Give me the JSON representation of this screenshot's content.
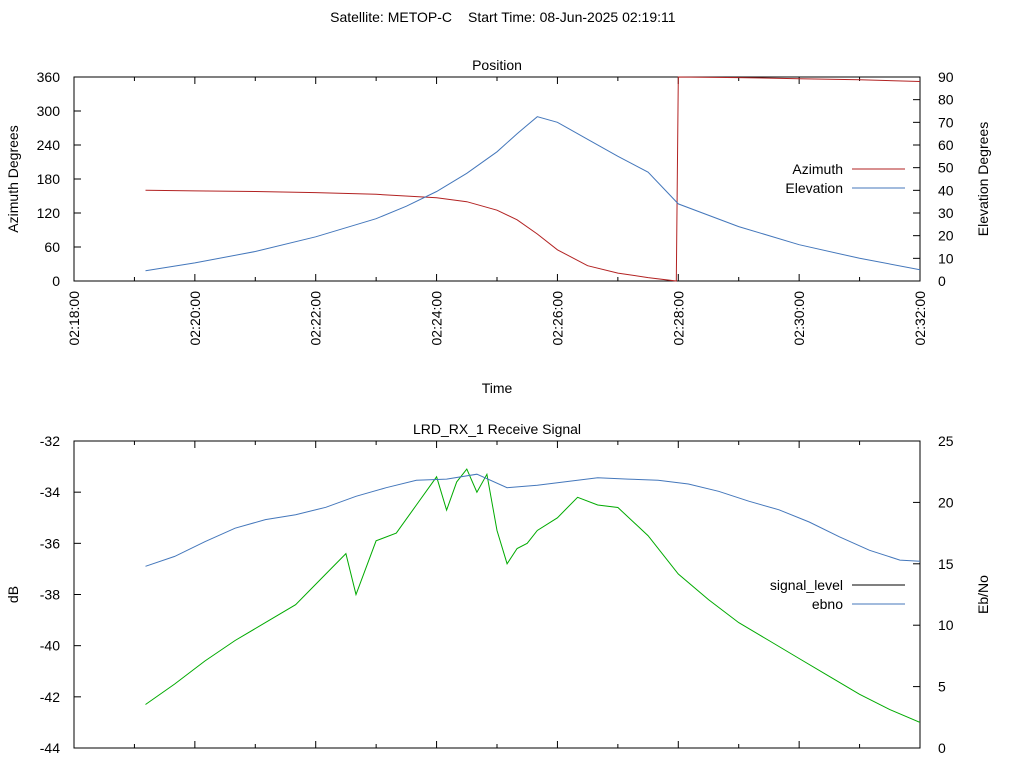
{
  "header": {
    "satellite": "Satellite: METOP-C",
    "start_time": "Start Time: 08-Jun-2025 02:19:11"
  },
  "chart_data": [
    {
      "type": "line",
      "title": "Position",
      "xlabel": "Time",
      "ylabel": "Azimuth Degrees",
      "y2label": "Elevation Degrees",
      "xlim": [
        "02:18:00",
        "02:32:00"
      ],
      "xticks": [
        "02:18:00",
        "02:20:00",
        "02:22:00",
        "02:24:00",
        "02:26:00",
        "02:28:00",
        "02:30:00",
        "02:32:00"
      ],
      "ylim": [
        0,
        360
      ],
      "yticks": [
        0,
        60,
        120,
        180,
        240,
        300,
        360
      ],
      "y2lim": [
        0,
        90
      ],
      "y2ticks": [
        0,
        10,
        20,
        30,
        40,
        50,
        60,
        70,
        80,
        90
      ],
      "legend": "right",
      "series": [
        {
          "name": "Azimuth",
          "axis": "y",
          "color": "#b22222",
          "x": [
            "02:19:11",
            "02:20:00",
            "02:21:00",
            "02:22:00",
            "02:23:00",
            "02:24:00",
            "02:24:30",
            "02:25:00",
            "02:25:20",
            "02:25:40",
            "02:26:00",
            "02:26:30",
            "02:27:00",
            "02:27:30",
            "02:27:58",
            "02:28:00",
            "02:29:00",
            "02:30:00",
            "02:31:00",
            "02:32:00"
          ],
          "values": [
            160,
            159,
            158,
            156,
            153,
            147,
            140,
            125,
            108,
            83,
            55,
            27,
            14,
            6,
            0,
            360,
            359,
            357,
            355,
            352
          ]
        },
        {
          "name": "Elevation",
          "axis": "y2",
          "color": "#4477bb",
          "x": [
            "02:19:11",
            "02:20:00",
            "02:21:00",
            "02:22:00",
            "02:23:00",
            "02:23:30",
            "02:24:00",
            "02:24:30",
            "02:25:00",
            "02:25:20",
            "02:25:40",
            "02:26:00",
            "02:26:30",
            "02:27:00",
            "02:27:30",
            "02:28:00",
            "02:29:00",
            "02:30:00",
            "02:31:00",
            "02:32:00"
          ],
          "values": [
            4.5,
            8,
            13,
            19.5,
            27.5,
            33,
            39.5,
            47.5,
            57,
            65,
            72.5,
            70,
            62.5,
            55,
            48,
            34,
            24,
            16,
            10,
            5
          ]
        }
      ]
    },
    {
      "type": "line",
      "title": "LRD_RX_1 Receive Signal",
      "ylabel": "dB",
      "y2label": "Eb/No",
      "xlim": [
        "02:18:00",
        "02:32:00"
      ],
      "ylim": [
        -44,
        -32
      ],
      "yticks": [
        -44,
        -42,
        -40,
        -38,
        -36,
        -34,
        -32
      ],
      "y2lim": [
        0,
        25
      ],
      "y2ticks": [
        0,
        5,
        10,
        15,
        20,
        25
      ],
      "legend": "right",
      "series": [
        {
          "name": "signal_level",
          "axis": "y",
          "color": "#00aa00",
          "x": [
            "02:19:11",
            "02:19:40",
            "02:20:10",
            "02:20:40",
            "02:21:10",
            "02:21:40",
            "02:22:10",
            "02:22:30",
            "02:22:40",
            "02:23:00",
            "02:23:20",
            "02:23:40",
            "02:24:00",
            "02:24:10",
            "02:24:20",
            "02:24:30",
            "02:24:40",
            "02:24:50",
            "02:25:00",
            "02:25:10",
            "02:25:20",
            "02:25:30",
            "02:25:40",
            "02:26:00",
            "02:26:20",
            "02:26:40",
            "02:27:00",
            "02:27:30",
            "02:28:00",
            "02:28:30",
            "02:29:00",
            "02:29:30",
            "02:30:00",
            "02:30:30",
            "02:31:00",
            "02:31:30",
            "02:32:00"
          ],
          "values": [
            -42.3,
            -41.5,
            -40.6,
            -39.8,
            -39.1,
            -38.4,
            -37.2,
            -36.4,
            -38.0,
            -35.9,
            -35.6,
            -34.5,
            -33.4,
            -34.7,
            -33.6,
            -33.1,
            -34.0,
            -33.3,
            -35.5,
            -36.8,
            -36.2,
            -36.0,
            -35.5,
            -35.0,
            -34.2,
            -34.5,
            -34.6,
            -35.7,
            -37.2,
            -38.2,
            -39.1,
            -39.8,
            -40.5,
            -41.2,
            -41.9,
            -42.5,
            -43.0
          ]
        },
        {
          "name": "ebno",
          "axis": "y2",
          "color": "#4477bb",
          "x": [
            "02:19:11",
            "02:19:40",
            "02:20:10",
            "02:20:40",
            "02:21:10",
            "02:21:40",
            "02:22:10",
            "02:22:40",
            "02:23:10",
            "02:23:40",
            "02:24:10",
            "02:24:40",
            "02:25:10",
            "02:25:40",
            "02:26:10",
            "02:26:40",
            "02:27:10",
            "02:27:40",
            "02:28:10",
            "02:28:40",
            "02:29:10",
            "02:29:40",
            "02:30:10",
            "02:30:40",
            "02:31:10",
            "02:31:40",
            "02:32:00"
          ],
          "values": [
            14.8,
            15.6,
            16.8,
            17.9,
            18.6,
            19.0,
            19.6,
            20.5,
            21.2,
            21.8,
            21.9,
            22.3,
            21.2,
            21.4,
            21.7,
            22.0,
            21.9,
            21.8,
            21.5,
            20.9,
            20.1,
            19.4,
            18.4,
            17.2,
            16.1,
            15.3,
            15.2
          ]
        }
      ]
    }
  ]
}
